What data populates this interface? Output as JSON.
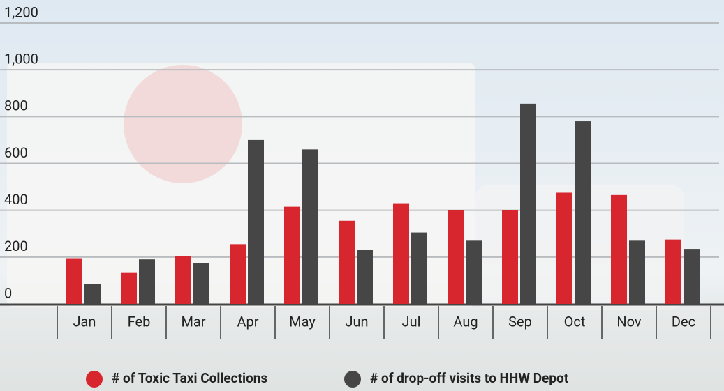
{
  "chart_data": {
    "type": "bar",
    "categories": [
      "Jan",
      "Feb",
      "Mar",
      "Apr",
      "May",
      "Jun",
      "Jul",
      "Aug",
      "Sep",
      "Oct",
      "Nov",
      "Dec"
    ],
    "series": [
      {
        "name": "# of Toxic Taxi Collections",
        "color": "#d7262e",
        "values": [
          195,
          135,
          205,
          255,
          415,
          355,
          430,
          400,
          400,
          475,
          465,
          275
        ]
      },
      {
        "name": "# of drop-off visits to HHW Depot",
        "color": "#464646",
        "values": [
          85,
          190,
          175,
          700,
          660,
          230,
          305,
          270,
          855,
          780,
          270,
          235
        ]
      }
    ],
    "ylim": [
      0,
      1200
    ],
    "yticks": [
      0,
      200,
      400,
      600,
      800,
      {
        "value": 1000,
        "label": "1,000"
      },
      {
        "value": 1200,
        "label": "1,200"
      }
    ],
    "grid": true
  }
}
